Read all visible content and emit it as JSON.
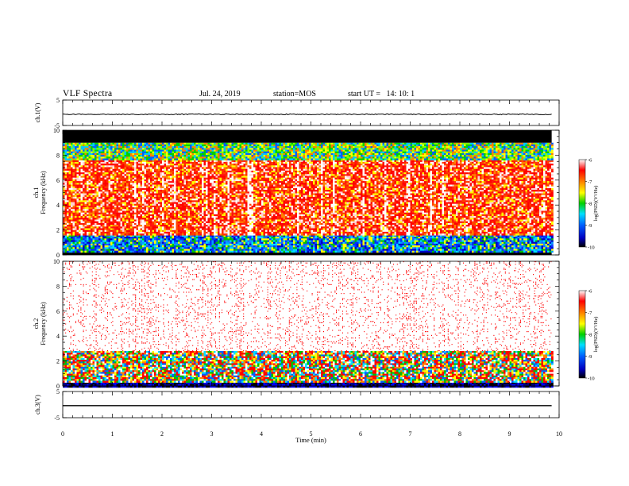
{
  "header": {
    "title": "VLF Spectra",
    "date": "Jul. 24, 2019",
    "station": "station=MOS",
    "start": "start UT =   14: 10: 1"
  },
  "chart_data": [
    {
      "type": "line",
      "panel": "ch1-voltage",
      "ylabel": "ch.1(V)",
      "ylim": [
        -5,
        5
      ],
      "ytick_labels": [
        "5",
        "-5"
      ],
      "xlim": [
        0,
        10
      ],
      "trace_level": 0
    },
    {
      "type": "heatmap",
      "panel": "ch1-spectrogram",
      "ylabel": "ch.1 Frequency (kHz)",
      "ylim": [
        0,
        10
      ],
      "ytick_labels": [
        "10",
        "8",
        "6",
        "4",
        "2",
        "0"
      ],
      "xlim": [
        0,
        9.85
      ],
      "colorbar": {
        "label": "log(PSD)(V²/Hz)",
        "range": [
          -10,
          -6
        ],
        "tick_labels": [
          "-6",
          "-7",
          "-8",
          "-9",
          "-10"
        ]
      },
      "bands": [
        {
          "from_khz": 0,
          "to_khz": 0.3,
          "level": "black"
        },
        {
          "from_khz": 0.3,
          "to_khz": 1.6,
          "level": "blue-cyan"
        },
        {
          "from_khz": 1.6,
          "to_khz": 7.6,
          "level": "red"
        },
        {
          "from_khz": 7.6,
          "to_khz": 9.0,
          "level": "yellow-green-blue"
        },
        {
          "from_khz": 9.0,
          "to_khz": 10,
          "level": "black"
        }
      ]
    },
    {
      "type": "heatmap",
      "panel": "ch2-spectrogram",
      "ylabel": "ch.2 Frequency (kHz)",
      "ylim": [
        0,
        10
      ],
      "ytick_labels": [
        "10",
        "8",
        "6",
        "4",
        "2",
        "0"
      ],
      "xlim": [
        0,
        9.85
      ],
      "colorbar": {
        "label": "log(PSD)(V²/Hz)",
        "range": [
          -10,
          -6
        ],
        "tick_labels": [
          "-6",
          "-7",
          "-8",
          "-9",
          "-10"
        ]
      },
      "bands": [
        {
          "from_khz": 0,
          "to_khz": 0.3,
          "level": "black-blue"
        },
        {
          "from_khz": 0.3,
          "to_khz": 2.8,
          "level": "green-yellow-red"
        },
        {
          "from_khz": 2.8,
          "to_khz": 10,
          "level": "sparse-red"
        }
      ]
    },
    {
      "type": "line",
      "panel": "ch3-voltage",
      "ylabel": "ch.3(V)",
      "ylim": [
        -5,
        5
      ],
      "ytick_labels": [
        "5",
        "-5"
      ],
      "xlim": [
        0,
        10
      ],
      "trace_level": 0
    }
  ],
  "x_axis": {
    "label": "Time (min)",
    "ticks": [
      "0",
      "1",
      "2",
      "3",
      "4",
      "5",
      "6",
      "7",
      "8",
      "9",
      "10"
    ]
  }
}
